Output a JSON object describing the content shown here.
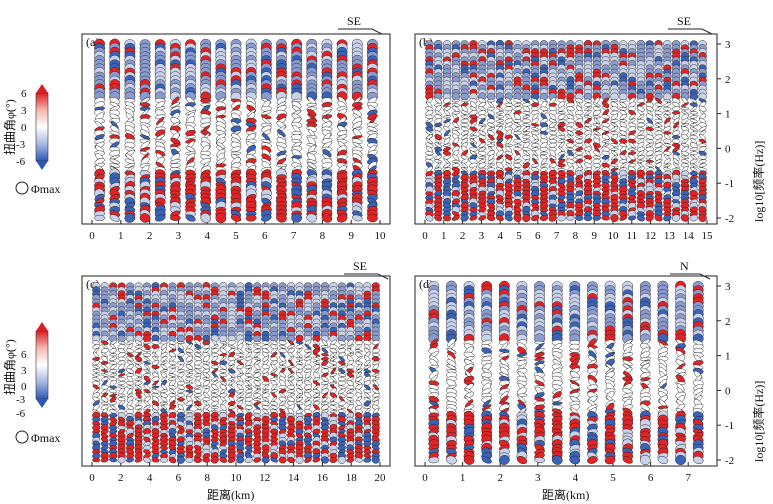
{
  "colors": {
    "red": "#e02426",
    "blue": "#3a63b8",
    "light": "#c9d2ea",
    "mid": "#8a9bd0",
    "ink": "#111111"
  },
  "colorbar": {
    "label": "扭曲角φ(°)",
    "ticks": [
      "6",
      "3",
      "0",
      "-3",
      "-6"
    ],
    "legend_label": "Φmax"
  },
  "xlabel": "距离(km)",
  "right_ylabel": "log10[频率(Hz)]",
  "right_yticks": [
    "3",
    "2",
    "1",
    "0",
    "-1",
    "-2"
  ],
  "chart_data": [
    {
      "panel": "(a)",
      "type": "scatter",
      "direction": "SE",
      "x_ticks": [
        "0",
        "1",
        "2",
        "3",
        "4",
        "5",
        "6",
        "7",
        "8",
        "9",
        "10"
      ],
      "xlim": [
        0,
        10
      ],
      "ylim": [
        -2,
        3
      ],
      "stations": 19
    },
    {
      "panel": "(b)",
      "type": "scatter",
      "direction": "SE",
      "x_ticks": [
        "0",
        "1",
        "2",
        "3",
        "4",
        "5",
        "6",
        "7",
        "8",
        "9",
        "10",
        "11",
        "12",
        "13",
        "14",
        "15"
      ],
      "xlim": [
        0,
        15
      ],
      "ylim": [
        -2,
        3
      ],
      "stations": 32
    },
    {
      "panel": "(c)",
      "type": "scatter",
      "direction": "SE",
      "x_ticks": [
        "0",
        "2",
        "4",
        "6",
        "8",
        "10",
        "12",
        "14",
        "16",
        "18",
        "20"
      ],
      "xlim": [
        0,
        20
      ],
      "ylim": [
        -2,
        3
      ],
      "stations": 34
    },
    {
      "panel": "(d)",
      "type": "scatter",
      "direction": "N",
      "x_ticks": [
        "0",
        "1",
        "2",
        "3",
        "4",
        "5",
        "6",
        "7"
      ],
      "xlim": [
        0,
        7.5
      ],
      "ylim": [
        -2,
        3
      ],
      "stations": 16
    }
  ]
}
